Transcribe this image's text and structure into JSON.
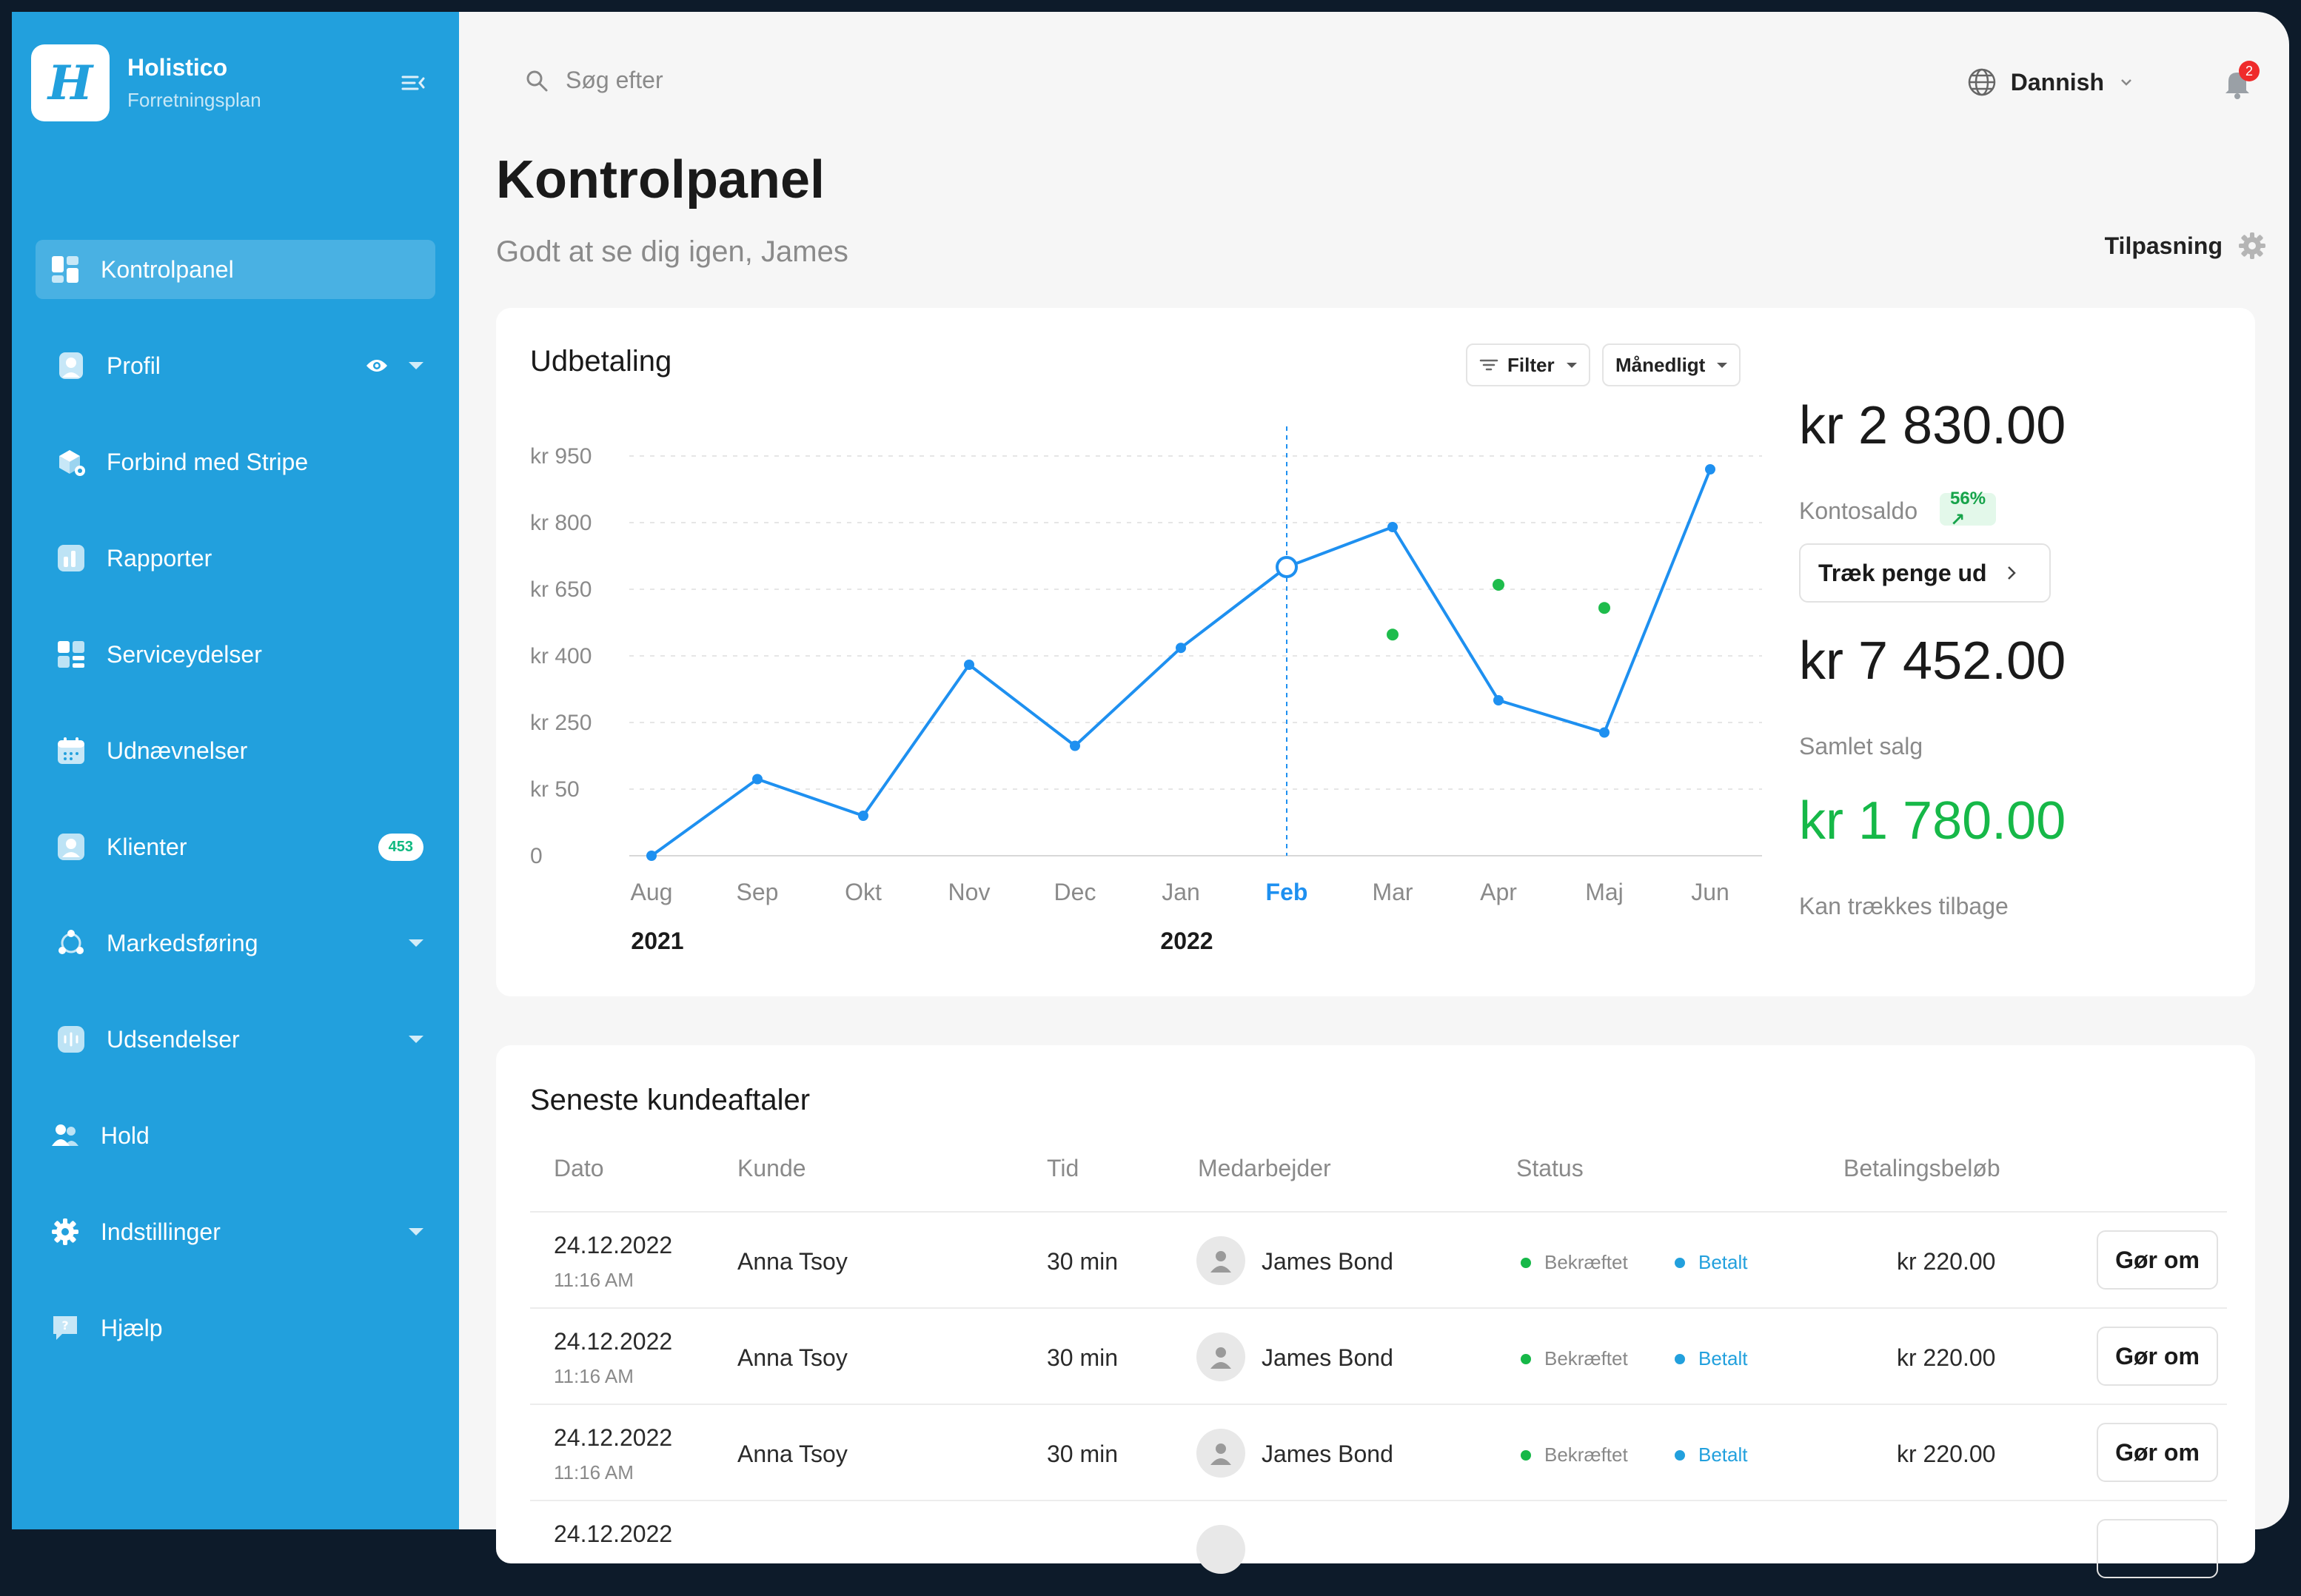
{
  "brand": {
    "name": "Holistico",
    "subtitle": "Forretningsplan",
    "logo_letter": "H"
  },
  "sidebar": {
    "items": [
      {
        "label": "Kontrolpanel",
        "icon": "dashboard-icon",
        "active": true
      },
      {
        "label": "Profil",
        "icon": "profile-icon"
      },
      {
        "label": "Forbind med Stripe",
        "icon": "stripe-icon"
      },
      {
        "label": "Rapporter",
        "icon": "reports-icon"
      },
      {
        "label": "Serviceydelser",
        "icon": "services-icon"
      },
      {
        "label": "Udnævnelser",
        "icon": "calendar-icon"
      },
      {
        "label": "Klienter",
        "icon": "clients-icon",
        "badge": "453"
      },
      {
        "label": "Markedsføring",
        "icon": "marketing-icon"
      },
      {
        "label": "Udsendelser",
        "icon": "broadcast-icon"
      },
      {
        "label": "Hold",
        "icon": "team-icon"
      },
      {
        "label": "Indstillinger",
        "icon": "settings-icon"
      },
      {
        "label": "Hjælp",
        "icon": "help-icon"
      }
    ]
  },
  "topbar": {
    "search_placeholder": "Søg efter",
    "language": "Dannish",
    "notifications": "2"
  },
  "page": {
    "title": "Kontrolpanel",
    "subtitle": "Godt at se dig igen, James",
    "customize": "Tilpasning"
  },
  "payout": {
    "title": "Udbetaling",
    "filter_label": "Filter",
    "period_label": "Månedligt",
    "balance_value": "kr 2 830.00",
    "balance_label": "Kontosaldo",
    "balance_change": "56% ↗",
    "withdraw_label": "Træk penge ud",
    "total_value": "kr 7 452.00",
    "total_label": "Samlet salg",
    "available_value": "kr 1 780.00",
    "available_label": "Kan trækkes tilbage"
  },
  "chart_data": {
    "type": "line",
    "title": "Udbetaling",
    "categories": [
      "Aug",
      "Sep",
      "Okt",
      "Nov",
      "Dec",
      "Jan",
      "Feb",
      "Mar",
      "Apr",
      "Maj",
      "Jun"
    ],
    "year_labels": [
      {
        "at": "Aug",
        "label": "2021"
      },
      {
        "at": "Jan",
        "label": "2022"
      }
    ],
    "y_ticks": [
      0,
      50,
      250,
      400,
      650,
      800,
      950
    ],
    "y_tick_labels": [
      "0",
      "kr 50",
      "kr 250",
      "kr 400",
      "kr 650",
      "kr 800",
      "kr 950"
    ],
    "highlighted_category": "Feb",
    "series": [
      {
        "values": [
          0,
          80,
          30,
          380,
          180,
          430,
          700,
          790,
          300,
          220,
          920
        ],
        "color": "#1e90f0"
      },
      {
        "type": "scatter",
        "points": [
          [
            "Mar",
            480
          ],
          [
            "Apr",
            660
          ],
          [
            "Maj",
            580
          ]
        ],
        "color": "#1ebc4c"
      }
    ],
    "grid": true
  },
  "appointments": {
    "title": "Seneste kundeaftaler",
    "columns": [
      "Dato",
      "Kunde",
      "Tid",
      "Medarbejder",
      "Status",
      "Betalingsbeløb"
    ],
    "rows": [
      {
        "date": "24.12.2022",
        "time": "11:16 AM",
        "client": "Anna Tsoy",
        "duration": "30 min",
        "staff": "James Bond",
        "status": "Bekræftet",
        "payment": "Betalt",
        "amount": "kr 220.00",
        "action": "Gør om"
      },
      {
        "date": "24.12.2022",
        "time": "11:16 AM",
        "client": "Anna Tsoy",
        "duration": "30 min",
        "staff": "James Bond",
        "status": "Bekræftet",
        "payment": "Betalt",
        "amount": "kr 220.00",
        "action": "Gør om"
      },
      {
        "date": "24.12.2022",
        "time": "11:16 AM",
        "client": "Anna Tsoy",
        "duration": "30 min",
        "staff": "James Bond",
        "status": "Bekræftet",
        "payment": "Betalt",
        "amount": "kr 220.00",
        "action": "Gør om"
      },
      {
        "date": "24.12.2022",
        "time": "",
        "client": "",
        "duration": "",
        "staff": "",
        "status": "",
        "payment": "",
        "amount": "",
        "action": ""
      }
    ]
  }
}
